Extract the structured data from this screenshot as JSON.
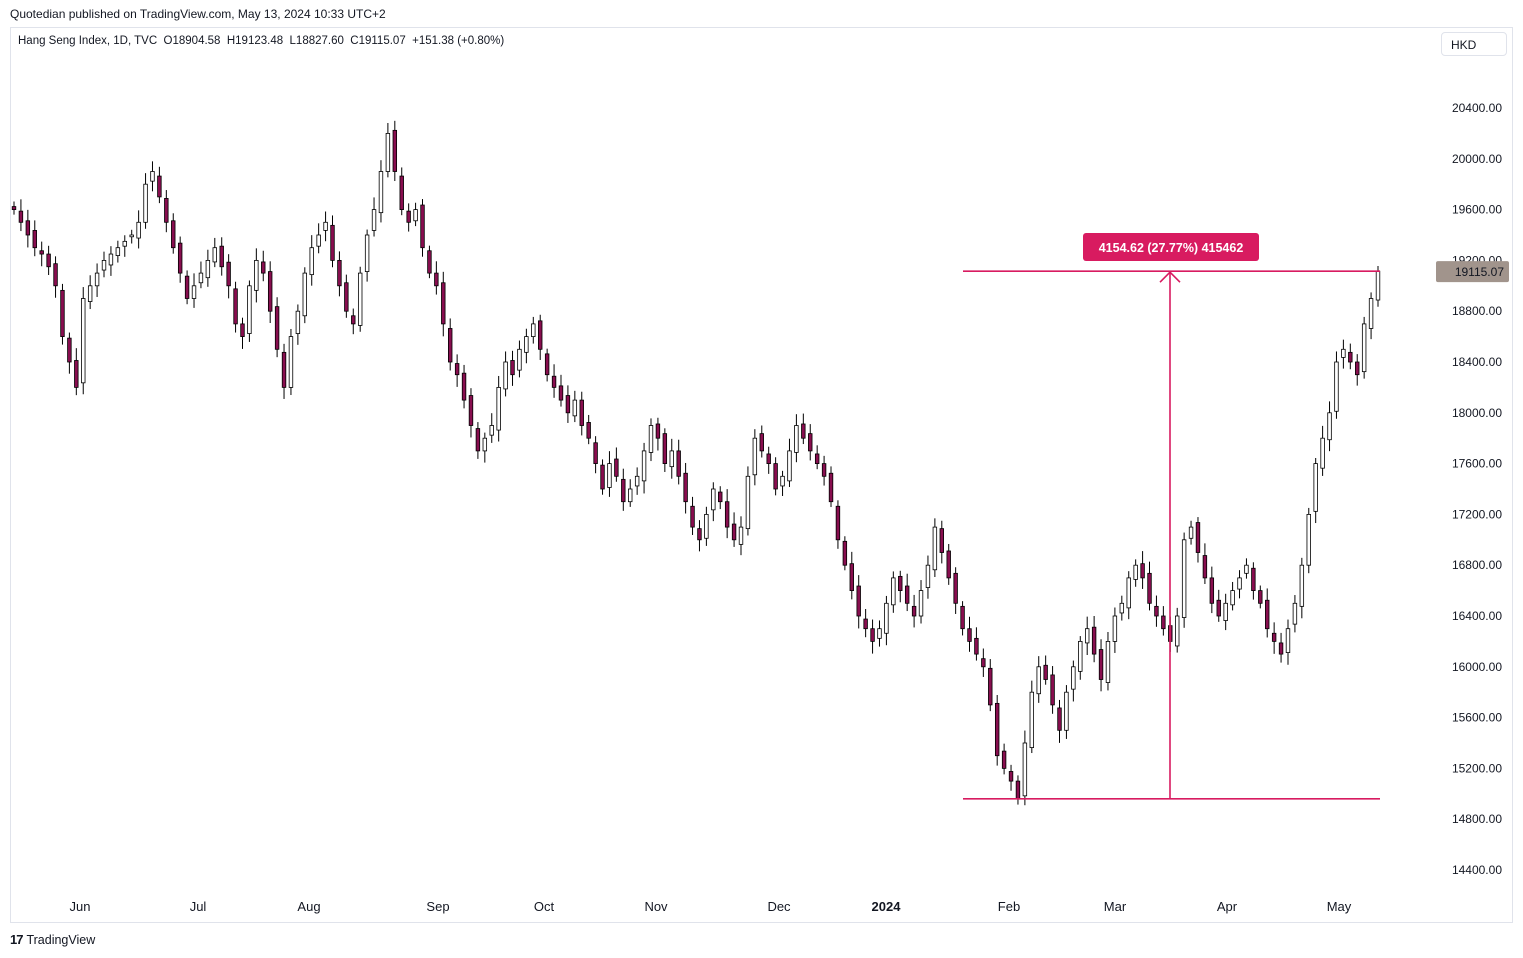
{
  "header": {
    "published_line": "Quotedian published on TradingView.com, May 13, 2024 10:33 UTC+2"
  },
  "legend": {
    "symbol": "Hang Seng Index, 1D, TVC",
    "open": "O18904.58",
    "high": "H19123.48",
    "low": "L18827.60",
    "close": "C19115.07",
    "change": "+151.38 (+0.80%)"
  },
  "currency_button": {
    "label": "HKD"
  },
  "footer": {
    "logo_text": "TradingView"
  },
  "colors": {
    "up": "#ffffff",
    "down": "#880e4f",
    "wick": "#000000",
    "measure": "#d81b60",
    "price_tag": "#a1948c"
  },
  "chart_data": {
    "type": "candlestick",
    "title": "",
    "y_axis": {
      "ticks": [
        "20400.00",
        "20000.00",
        "19600.00",
        "19200.00",
        "18800.00",
        "18400.00",
        "18000.00",
        "17600.00",
        "17200.00",
        "16800.00",
        "16400.00",
        "16000.00",
        "15600.00",
        "15200.00",
        "14800.00",
        "14400.00"
      ],
      "range": [
        14200,
        20800
      ],
      "position": "right"
    },
    "x_axis": {
      "labels": [
        "Jun",
        "Jul",
        "Aug",
        "Sep",
        "Oct",
        "Nov",
        "Dec",
        "2024",
        "Feb",
        "Mar",
        "Apr",
        "May"
      ],
      "bold_label": "2024"
    },
    "last_price": {
      "value": 19115.07,
      "label": "19115.07"
    },
    "measure_tool": {
      "label": "4154.62 (27.77%) 415462",
      "from_price": 14960.45,
      "to_price": 19115.07,
      "from_date": "2024-01-22",
      "to_date": "2024-05-13"
    },
    "closes_approx": [
      19600,
      19500,
      19400,
      19300,
      19250,
      19150,
      19000,
      18600,
      18400,
      18200,
      18900,
      19000,
      19100,
      19200,
      19250,
      19300,
      19350,
      19400,
      19500,
      19800,
      19900,
      19700,
      19500,
      19300,
      19100,
      18900,
      19000,
      19100,
      19200,
      19300,
      19150,
      19000,
      18700,
      18600,
      19000,
      19200,
      19100,
      18800,
      18500,
      18200,
      18600,
      18800,
      19100,
      19300,
      19400,
      19500,
      19200,
      19000,
      18800,
      18700,
      19100,
      19400,
      19600,
      19900,
      20200,
      19900,
      19600,
      19500,
      19600,
      19300,
      19100,
      19000,
      18700,
      18400,
      18300,
      18100,
      17900,
      17700,
      17800,
      17900,
      18200,
      18400,
      18300,
      18500,
      18600,
      18700,
      18500,
      18300,
      18200,
      18100,
      18000,
      18100,
      17900,
      17800,
      17600,
      17400,
      17600,
      17500,
      17300,
      17400,
      17500,
      17700,
      17900,
      17800,
      17600,
      17700,
      17500,
      17300,
      17100,
      17000,
      17200,
      17400,
      17300,
      17100,
      17000,
      17100,
      17500,
      17800,
      17700,
      17600,
      17400,
      17500,
      17700,
      17900,
      17800,
      17700,
      17600,
      17500,
      17300,
      17000,
      16800,
      16600,
      16400,
      16300,
      16200,
      16300,
      16500,
      16700,
      16600,
      16500,
      16400,
      16600,
      16800,
      17100,
      16900,
      16700,
      16500,
      16300,
      16200,
      16100,
      16000,
      15700,
      15300,
      15200,
      15100,
      14960,
      15400,
      15800,
      16000,
      15900,
      15700,
      15500,
      15800,
      16000,
      16200,
      16300,
      16100,
      15900,
      16200,
      16400,
      16500,
      16700,
      16800,
      16700,
      16500,
      16400,
      16300,
      16200,
      16400,
      17000,
      17100,
      16900,
      16700,
      16500,
      16400,
      16500,
      16600,
      16700,
      16800,
      16600,
      16500,
      16300,
      16200,
      16100,
      16300,
      16500,
      16800,
      17200,
      17600,
      17800,
      18000,
      18400,
      18500,
      18400,
      18300,
      18700,
      18900,
      19115
    ]
  }
}
